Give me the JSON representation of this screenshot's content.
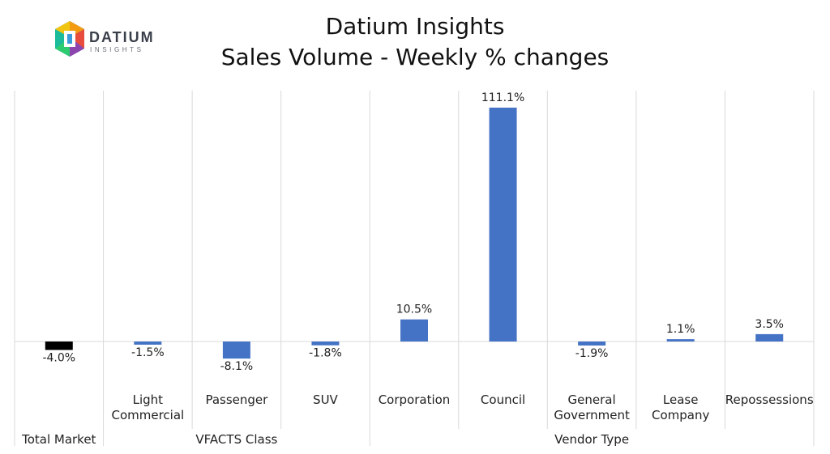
{
  "logo": {
    "name": "DATIUM",
    "sub": "INSIGHTS"
  },
  "title_line1": "Datium Insights",
  "title_line2": "Sales Volume - Weekly % changes",
  "colors": {
    "positive": "#4472C4",
    "total": "#000000",
    "grid": "#d9d9d9"
  },
  "chart_data": {
    "type": "bar",
    "title": "Datium Insights\nSales Volume - Weekly % changes",
    "categories": [
      "Total Market",
      "Light Commercial",
      "Passenger",
      "SUV",
      "Corporation",
      "Council",
      "General Government",
      "Lease Company",
      "Repossessions"
    ],
    "category_lines": [
      [
        "Total Market"
      ],
      [
        "Light",
        "Commercial"
      ],
      [
        "Passenger"
      ],
      [
        "SUV"
      ],
      [
        "Corporation"
      ],
      [
        "Council"
      ],
      [
        "General",
        "Government"
      ],
      [
        "Lease",
        "Company"
      ],
      [
        "Repossessions"
      ]
    ],
    "values": [
      -4.0,
      -1.5,
      -8.1,
      -1.8,
      10.5,
      111.1,
      -1.9,
      1.1,
      3.5
    ],
    "data_labels": [
      "-4.0%",
      "-1.5%",
      "-8.1%",
      "-1.8%",
      "10.5%",
      "111.1%",
      "-1.9%",
      "1.1%",
      "3.5%"
    ],
    "groups": [
      {
        "label": "Total Market",
        "start": 0,
        "end": 0
      },
      {
        "label": "VFACTS Class",
        "start": 1,
        "end": 3
      },
      {
        "label": "Vendor Type",
        "start": 4,
        "end": 8
      }
    ],
    "ylim": [
      -16,
      118
    ],
    "grid": true,
    "legend": "none"
  }
}
